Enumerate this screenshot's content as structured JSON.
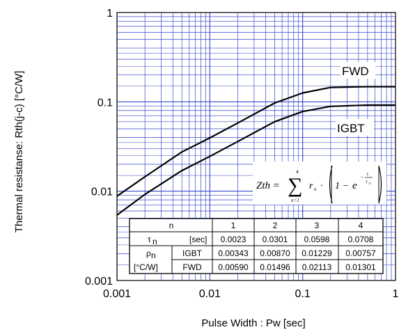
{
  "chart_data": {
    "type": "line",
    "xscale": "log",
    "yscale": "log",
    "xlim": [
      0.001,
      1
    ],
    "ylim": [
      0.001,
      1
    ],
    "xlabel": "Pulse Width : Pw [sec]",
    "ylabel": "Thermal resistanse: Rth(j-c) [°C/W]",
    "x_ticks": [
      "0.001",
      "0.01",
      "0.1",
      "1"
    ],
    "y_ticks": [
      "0.001",
      "0.01",
      "0.1",
      "1"
    ],
    "grid": true,
    "colors": {
      "grid": "#3344cc",
      "line": "#000000",
      "frame": "#000000"
    },
    "series": [
      {
        "name": "FWD",
        "x": [
          0.001,
          0.002,
          0.005,
          0.01,
          0.02,
          0.05,
          0.1,
          0.2,
          0.5,
          1
        ],
        "y": [
          0.0088,
          0.0145,
          0.0275,
          0.0395,
          0.058,
          0.097,
          0.126,
          0.145,
          0.148,
          0.148
        ]
      },
      {
        "name": "IGBT",
        "x": [
          0.001,
          0.002,
          0.005,
          0.01,
          0.02,
          0.05,
          0.1,
          0.2,
          0.5,
          1
        ],
        "y": [
          0.0054,
          0.0092,
          0.017,
          0.0245,
          0.036,
          0.06,
          0.078,
          0.089,
          0.092,
          0.092
        ]
      }
    ],
    "formula": {
      "lhs": "Zth =",
      "sum_top": "4",
      "sum_bottom": "n=1",
      "term_r": "r",
      "term_n": "n",
      "dot": "·",
      "one_minus": "1 −",
      "e": "e",
      "exp_num": "t",
      "exp_den": "τ",
      "exp_den_sub": "n",
      "exp_minus": "−"
    },
    "table": {
      "header": [
        "n",
        "1",
        "2",
        "3",
        "4"
      ],
      "tau_symbol": "τ",
      "tau_sub": "n",
      "tau_unit": "[sec]",
      "tau_values": [
        "0.0023",
        "0.0301",
        "0.0598",
        "0.0708"
      ],
      "rho_symbol": "ρ",
      "rho_sub": "n",
      "rho_unit": "[°C/W]",
      "igbt_label": "IGBT",
      "igbt_values": [
        "0.00343",
        "0.00870",
        "0.01229",
        "0.00757"
      ],
      "fwd_label": "FWD",
      "fwd_values": [
        "0.00590",
        "0.01496",
        "0.02113",
        "0.01301"
      ]
    }
  }
}
